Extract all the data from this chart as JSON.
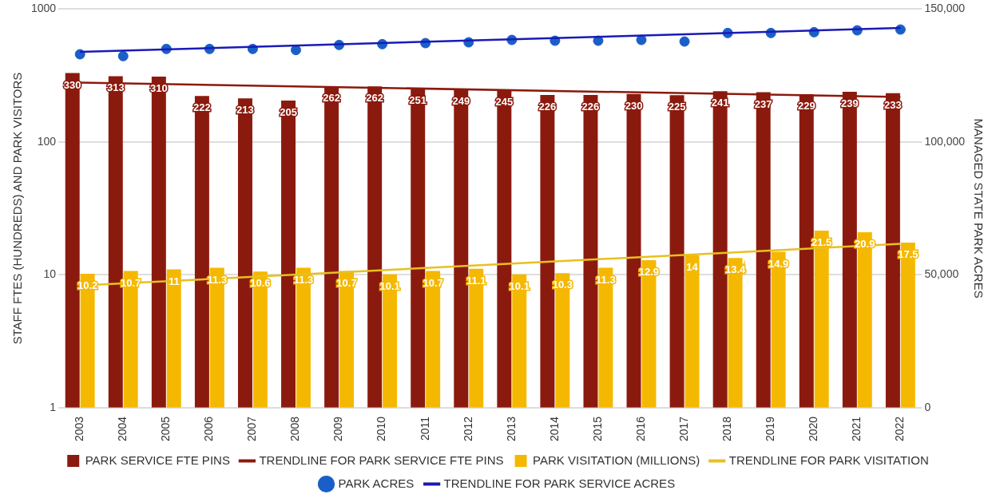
{
  "chart_data": {
    "type": "bar",
    "categories": [
      "2003",
      "2004",
      "2005",
      "2006",
      "2007",
      "2008",
      "2009",
      "2010",
      "2011",
      "2012",
      "2013",
      "2014",
      "2015",
      "2016",
      "2017",
      "2018",
      "2019",
      "2020",
      "2021",
      "2022"
    ],
    "ylabel": "STAFF FTES (HUNDREDS) AND PARK VISITORS",
    "y2label": "MANAGED STATE PARK ACRES",
    "log": "y",
    "ylim": [
      1,
      1000
    ],
    "yticks": [
      1,
      10,
      100,
      1000
    ],
    "y2lim": [
      0,
      150000
    ],
    "y2ticks": [
      {
        "value": 0,
        "label": "0"
      },
      {
        "value": 50000,
        "label": "50,000"
      },
      {
        "value": 100000,
        "label": "100,000"
      },
      {
        "value": 150000,
        "label": "150,000"
      }
    ],
    "grid": "y",
    "legend": "bottom",
    "series": [
      {
        "name": "PARK SERVICE FTE PINS",
        "type": "bar",
        "color": "#8b1a0e",
        "values": [
          330,
          313,
          310,
          222,
          213,
          205,
          262,
          262,
          251,
          249,
          245,
          226,
          226,
          230,
          225,
          241,
          237,
          229,
          239,
          233
        ],
        "value_labels": [
          "330",
          "313",
          "310",
          "222",
          "213",
          "205",
          "262",
          "262",
          "251",
          "249",
          "245",
          "226",
          "226",
          "230",
          "225",
          "241",
          "237",
          "229",
          "239",
          "233"
        ]
      },
      {
        "name": "TRENDLINE FOR PARK SERVICE FTE PINS",
        "type": "line",
        "color": "#8b1a0e",
        "values": [
          280,
          null,
          null,
          null,
          null,
          null,
          null,
          null,
          null,
          null,
          null,
          null,
          null,
          null,
          null,
          null,
          null,
          null,
          null,
          218
        ]
      },
      {
        "name": "PARK VISITATION (MILLIONS)",
        "type": "bar",
        "color": "#f5b800",
        "values": [
          10.2,
          10.7,
          11,
          11.3,
          10.6,
          11.3,
          10.7,
          10.1,
          10.7,
          11.1,
          10.1,
          10.3,
          11.3,
          12.9,
          14,
          13.4,
          14.9,
          21.5,
          20.9,
          17.5
        ],
        "value_labels": [
          "10.2",
          "10.7",
          "11",
          "11.3",
          "10.6",
          "11.3",
          "10.7",
          "10.1",
          "10.7",
          "11.1",
          "10.1",
          "10.3",
          "11.3",
          "12.9",
          "14",
          "13.4",
          "14.9",
          "21.5",
          "20.9",
          "17.5"
        ]
      },
      {
        "name": "TRENDLINE FOR PARK VISITATION",
        "type": "line",
        "color": "#e8c020",
        "values": [
          8.3,
          null,
          null,
          null,
          null,
          null,
          null,
          null,
          null,
          null,
          null,
          null,
          null,
          null,
          null,
          null,
          null,
          null,
          null,
          17.1
        ]
      },
      {
        "name": "PARK ACRES",
        "type": "scatter",
        "axis": "y2",
        "color": "#1a5fc8",
        "marker": "circle",
        "values": [
          133000,
          132300,
          135000,
          135000,
          135000,
          134600,
          136500,
          136800,
          137200,
          137500,
          138400,
          138100,
          138100,
          138400,
          137800,
          141000,
          141000,
          141300,
          142000,
          142300
        ]
      },
      {
        "name": "TRENDLINE FOR PARK SERVICE ACRES",
        "type": "line",
        "axis": "y2",
        "color": "#1a1ab8",
        "values": [
          133900,
          null,
          null,
          null,
          null,
          null,
          null,
          null,
          null,
          null,
          null,
          null,
          null,
          null,
          null,
          null,
          null,
          null,
          null,
          142900
        ]
      }
    ]
  }
}
